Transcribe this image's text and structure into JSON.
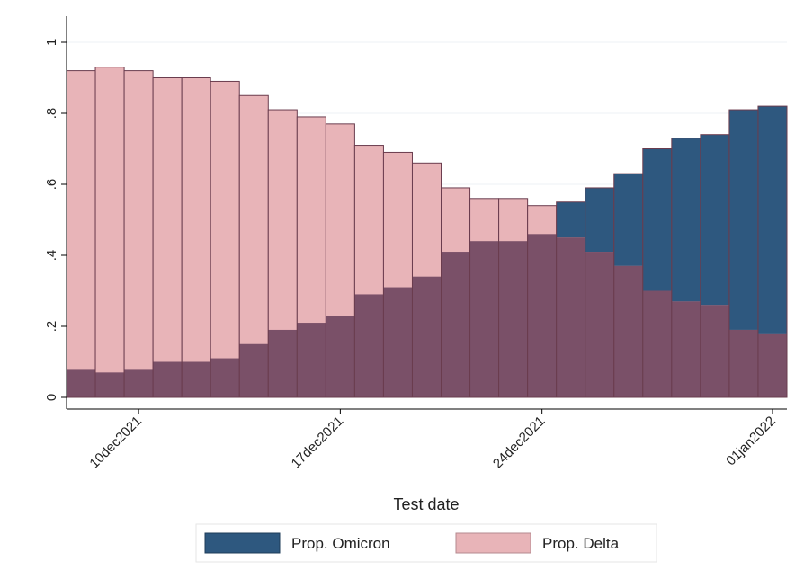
{
  "chart_data": {
    "type": "bar",
    "xlabel": "Test date",
    "ylabel": "",
    "ylim": [
      0,
      1
    ],
    "yticks": [
      0,
      0.2,
      0.4,
      0.6,
      0.8,
      1
    ],
    "ytick_labels": [
      "0",
      ".2",
      ".4",
      ".6",
      ".8",
      "1"
    ],
    "x_start": "2021-12-08",
    "x_end": "2022-01-01",
    "xticks": [
      {
        "date": "2021-12-10",
        "label": "10dec2021"
      },
      {
        "date": "2021-12-17",
        "label": "17dec2021"
      },
      {
        "date": "2021-12-24",
        "label": "24dec2021"
      },
      {
        "date": "2022-01-01",
        "label": "01jan2022"
      }
    ],
    "grid": true,
    "legend_position": "bottom",
    "colors": {
      "omicron": "#2e587f",
      "delta": "#e8b4b8",
      "overlap": "#7a5068"
    },
    "series": [
      {
        "name": "Prop. Omicron",
        "values": [
          0.08,
          0.07,
          0.08,
          0.1,
          0.1,
          0.11,
          0.15,
          0.19,
          0.21,
          0.23,
          0.29,
          0.31,
          0.34,
          0.41,
          0.44,
          0.44,
          0.46,
          0.55,
          0.59,
          0.63,
          0.7,
          0.73,
          0.74,
          0.81,
          0.82
        ]
      },
      {
        "name": "Prop. Delta",
        "values": [
          0.92,
          0.93,
          0.92,
          0.9,
          0.9,
          0.89,
          0.85,
          0.81,
          0.79,
          0.77,
          0.71,
          0.69,
          0.66,
          0.59,
          0.56,
          0.56,
          0.54,
          0.45,
          0.41,
          0.37,
          0.3,
          0.27,
          0.26,
          0.19,
          0.18
        ]
      }
    ]
  }
}
